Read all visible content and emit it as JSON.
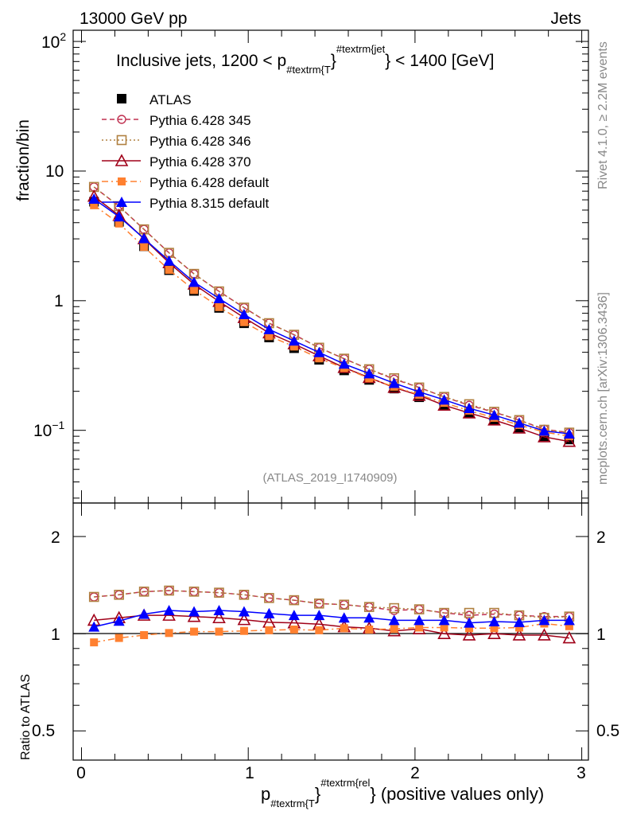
{
  "header": {
    "left": "13000 GeV pp",
    "right": "Jets"
  },
  "side_labels": {
    "rivet": "Rivet 4.1.0, ≥ 2.2M events",
    "mcplots": "mcplots.cern.ch [arXiv:1306.3436]"
  },
  "watermark": "(ATLAS_2019_I1740909)",
  "title_parts": {
    "a": "Inclusive jets, 1200 < p",
    "sub": "#textrm{T",
    "b": "}",
    "sup": "#textrm{jet",
    "c": "} < 1400 [GeV]"
  },
  "xlabel_parts": {
    "a": "p",
    "sub": "#textrm{T",
    "b": "}",
    "sup": "#textrm{rel",
    "c": "} (positive values only)"
  },
  "chart_data": {
    "type": "line",
    "title": "Inclusive jets, 1200 < pT jet < 1400 [GeV]",
    "xlabel": "p_T^rel (positive values only)",
    "ylabel": "fraction/bin",
    "ratio_ylabel": "Ratio to ATLAS",
    "xlim": [
      -0.05,
      3.04
    ],
    "ylim": [
      0.0275,
      122
    ],
    "yscale": "log",
    "ratio_ylim": [
      0.406,
      2.54
    ],
    "ratio_yscale": "log",
    "legend_position": "top-left",
    "x_ticks": [
      "0",
      "1",
      "2",
      "3"
    ],
    "y_ticks": [
      {
        "base": "10",
        "exp": "2"
      },
      {
        "base": "10",
        "exp": ""
      },
      {
        "base": "1",
        "exp": ""
      },
      {
        "base": "10",
        "exp": "−1"
      }
    ],
    "ratio_ticks": [
      "2",
      "1",
      "0.5"
    ],
    "x": [
      0.075,
      0.225,
      0.375,
      0.525,
      0.675,
      0.825,
      0.975,
      1.125,
      1.275,
      1.425,
      1.575,
      1.725,
      1.875,
      2.025,
      2.175,
      2.325,
      2.475,
      2.625,
      2.775,
      2.925
    ],
    "series": [
      {
        "name": "ATLAS",
        "color": "#000000",
        "marker": "filled-square",
        "line": "none",
        "values": [
          5.8,
          4.06,
          2.63,
          1.72,
          1.19,
          0.88,
          0.67,
          0.52,
          0.43,
          0.35,
          0.29,
          0.245,
          0.21,
          0.18,
          0.156,
          0.137,
          0.12,
          0.105,
          0.09,
          0.085
        ],
        "ratio": []
      },
      {
        "name": "Pythia 6.428 345",
        "color": "#c03050",
        "marker": "open-circle",
        "line": "dashed",
        "values": [
          7.54,
          5.36,
          3.55,
          2.34,
          1.61,
          1.18,
          0.884,
          0.671,
          0.546,
          0.434,
          0.357,
          0.296,
          0.248,
          0.214,
          0.181,
          0.156,
          0.138,
          0.12,
          0.102,
          0.096
        ],
        "ratio": [
          1.3,
          1.32,
          1.35,
          1.36,
          1.35,
          1.34,
          1.32,
          1.29,
          1.27,
          1.24,
          1.23,
          1.21,
          1.18,
          1.19,
          1.16,
          1.14,
          1.15,
          1.14,
          1.13,
          1.13
        ]
      },
      {
        "name": "Pythia 6.428 346",
        "color": "#b08040",
        "marker": "open-square",
        "line": "dotted",
        "values": [
          7.54,
          5.36,
          3.55,
          2.34,
          1.61,
          1.18,
          0.884,
          0.671,
          0.546,
          0.434,
          0.357,
          0.296,
          0.252,
          0.214,
          0.181,
          0.159,
          0.139,
          0.12,
          0.101,
          0.096
        ],
        "ratio": [
          1.3,
          1.32,
          1.35,
          1.36,
          1.35,
          1.34,
          1.32,
          1.29,
          1.27,
          1.24,
          1.23,
          1.21,
          1.2,
          1.19,
          1.16,
          1.16,
          1.16,
          1.14,
          1.12,
          1.13
        ]
      },
      {
        "name": "Pythia 6.428 370",
        "color": "#a00018",
        "marker": "open-triangle",
        "line": "solid",
        "values": [
          6.38,
          4.55,
          3.0,
          1.96,
          1.34,
          0.986,
          0.74,
          0.564,
          0.464,
          0.375,
          0.305,
          0.255,
          0.214,
          0.186,
          0.156,
          0.136,
          0.12,
          0.104,
          0.089,
          0.082
        ],
        "ratio": [
          1.1,
          1.12,
          1.14,
          1.14,
          1.13,
          1.12,
          1.105,
          1.085,
          1.08,
          1.07,
          1.05,
          1.04,
          1.02,
          1.035,
          1.0,
          0.99,
          1.0,
          0.99,
          0.99,
          0.97
        ]
      },
      {
        "name": "Pythia 6.428 default",
        "color": "#ff8030",
        "marker": "filled-square-small",
        "line": "dashdot",
        "values": [
          5.45,
          3.94,
          2.6,
          1.73,
          1.21,
          0.893,
          0.683,
          0.533,
          0.443,
          0.359,
          0.302,
          0.252,
          0.217,
          0.188,
          0.163,
          0.142,
          0.125,
          0.11,
          0.097,
          0.09
        ],
        "ratio": [
          0.94,
          0.97,
          0.99,
          1.005,
          1.015,
          1.015,
          1.02,
          1.025,
          1.03,
          1.025,
          1.04,
          1.03,
          1.035,
          1.045,
          1.045,
          1.04,
          1.04,
          1.045,
          1.075,
          1.055
        ]
      },
      {
        "name": "Pythia 8.315 default",
        "color": "#0000ff",
        "marker": "filled-triangle",
        "line": "solid",
        "values": [
          6.09,
          4.45,
          3.02,
          2.03,
          1.39,
          1.04,
          0.784,
          0.601,
          0.49,
          0.399,
          0.325,
          0.274,
          0.231,
          0.198,
          0.172,
          0.148,
          0.131,
          0.114,
          0.099,
          0.094
        ],
        "ratio": [
          1.05,
          1.095,
          1.15,
          1.18,
          1.17,
          1.18,
          1.17,
          1.155,
          1.14,
          1.14,
          1.12,
          1.12,
          1.1,
          1.1,
          1.1,
          1.08,
          1.09,
          1.085,
          1.1,
          1.1
        ]
      }
    ]
  }
}
